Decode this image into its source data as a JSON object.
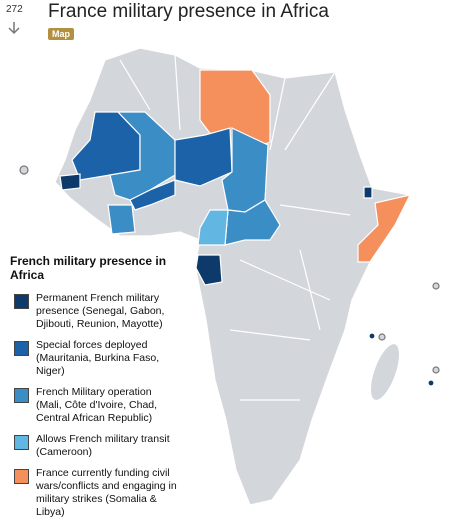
{
  "header": {
    "count": "272",
    "title": "France military presence in Africa",
    "tag": "Map"
  },
  "legend": {
    "title": "French military presence in Africa",
    "items": [
      {
        "label": "Permanent French military presence (Senegal, Gabon, Djibouti, Reunion, Mayotte)",
        "color": "#0e3a6b"
      },
      {
        "label": "Special forces deployed (Mauritania, Burkina Faso, Niger)",
        "color": "#1c62a8"
      },
      {
        "label": "French Military operation (Mali, Côte d'Ivoire, Chad, Central African Republic)",
        "color": "#3b8dc6"
      },
      {
        "label": "Allows French military transit (Cameroon)",
        "color": "#62b6e2"
      },
      {
        "label": "France currently funding civil wars/conflicts and engaging in military strikes (Somalia & Libya)",
        "color": "#f58f5c"
      }
    ]
  }
}
